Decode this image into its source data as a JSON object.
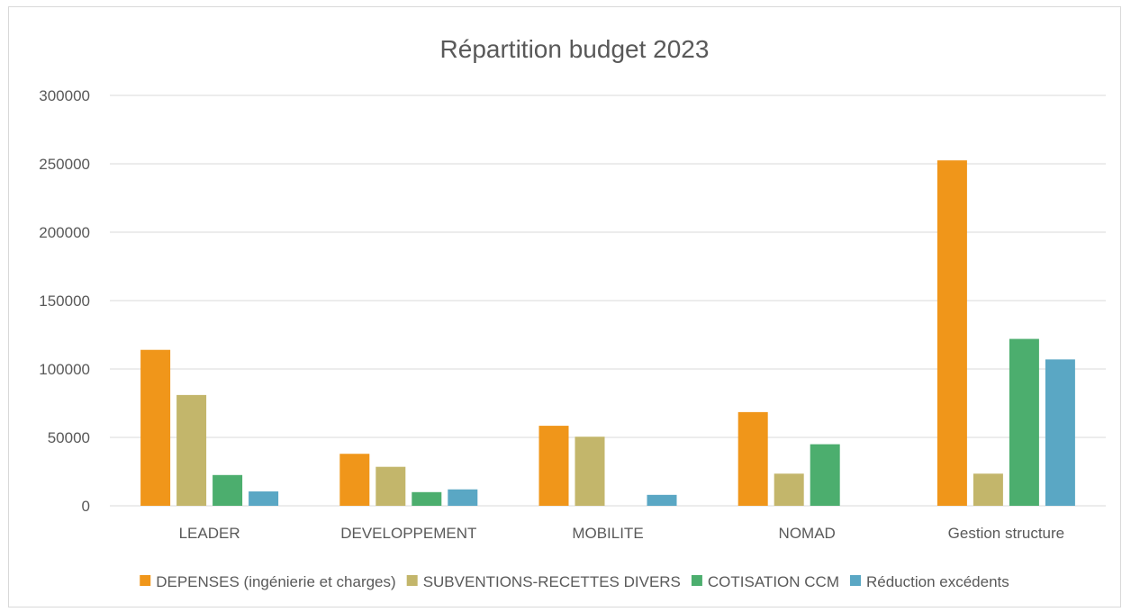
{
  "chart_data": {
    "type": "bar",
    "title": "Répartition budget 2023",
    "categories": [
      "LEADER",
      "DEVELOPPEMENT",
      "MOBILITE",
      "NOMAD",
      "Gestion structure"
    ],
    "series": [
      {
        "name": "DEPENSES (ingénierie et charges)",
        "color": "#F0961A",
        "values": [
          114000,
          38000,
          58500,
          68500,
          252500
        ]
      },
      {
        "name": "SUBVENTIONS-RECETTES DIVERS",
        "color": "#C3B66B",
        "values": [
          81000,
          28500,
          50500,
          23500,
          23500
        ]
      },
      {
        "name": "COTISATION CCM",
        "color": "#4CAE6E",
        "values": [
          22500,
          10000,
          0,
          45000,
          122000
        ]
      },
      {
        "name": "Réduction excédents",
        "color": "#5AA7C4",
        "values": [
          10500,
          12000,
          8000,
          0,
          107000
        ]
      }
    ],
    "yticks": [
      "0",
      "50000",
      "100000",
      "150000",
      "200000",
      "250000",
      "300000"
    ],
    "ylim": [
      0,
      300000
    ],
    "grid": true,
    "legend_position": "bottom"
  }
}
